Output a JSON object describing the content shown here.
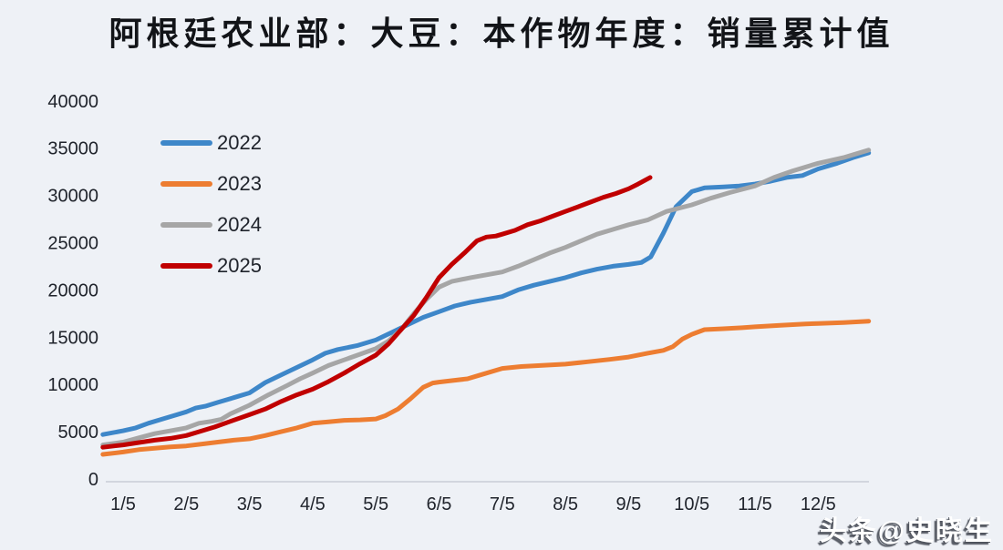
{
  "title": "阿根廷农业部：大豆：本作物年度：销量累计值",
  "watermark": "头条@史晓生",
  "colors": {
    "background": "#eef1f6",
    "title_text": "#121418",
    "tick_text": "#20242c",
    "axis_line": "#c9ced6",
    "series_2022": "#3e87c9",
    "series_2023": "#ed7d31",
    "series_2024": "#a6a6a6",
    "series_2025": "#c00000",
    "watermark_fill": "#ffffff",
    "watermark_shadow": "#494e58"
  },
  "legend": [
    {
      "label": "2022",
      "color": "#3e87c9"
    },
    {
      "label": "2023",
      "color": "#ed7d31"
    },
    {
      "label": "2024",
      "color": "#a6a6a6"
    },
    {
      "label": "2025",
      "color": "#c00000"
    }
  ],
  "chart_data": {
    "type": "line",
    "title": "阿根廷农业部：大豆：本作物年度：销量累计值",
    "xlabel": "",
    "ylabel": "",
    "grid": false,
    "legend_position": "top-left",
    "x_axis": {
      "tick_labels": [
        "1/5",
        "2/5",
        "3/5",
        "4/5",
        "5/5",
        "6/5",
        "7/5",
        "8/5",
        "9/5",
        "10/5",
        "11/5",
        "12/5"
      ],
      "range_month_units": [
        0.68,
        12.8
      ]
    },
    "y_axis": {
      "ticks": [
        0,
        5000,
        10000,
        15000,
        20000,
        25000,
        30000,
        35000,
        40000
      ],
      "range": [
        0,
        40000
      ]
    },
    "series": [
      {
        "name": "2022",
        "color": "#3e87c9",
        "points": [
          [
            0.68,
            4700
          ],
          [
            1,
            5100
          ],
          [
            1.2,
            5400
          ],
          [
            1.4,
            5900
          ],
          [
            1.6,
            6300
          ],
          [
            1.8,
            6700
          ],
          [
            2,
            7100
          ],
          [
            2.15,
            7500
          ],
          [
            2.3,
            7700
          ],
          [
            2.5,
            8100
          ],
          [
            2.75,
            8600
          ],
          [
            3,
            9100
          ],
          [
            3.25,
            10200
          ],
          [
            3.5,
            11000
          ],
          [
            3.75,
            11800
          ],
          [
            4,
            12600
          ],
          [
            4.2,
            13300
          ],
          [
            4.4,
            13700
          ],
          [
            4.7,
            14100
          ],
          [
            5,
            14700
          ],
          [
            5.25,
            15500
          ],
          [
            5.5,
            16300
          ],
          [
            5.75,
            17100
          ],
          [
            6,
            17700
          ],
          [
            6.25,
            18300
          ],
          [
            6.5,
            18700
          ],
          [
            6.75,
            19000
          ],
          [
            7,
            19300
          ],
          [
            7.25,
            20000
          ],
          [
            7.5,
            20500
          ],
          [
            7.75,
            20900
          ],
          [
            8,
            21300
          ],
          [
            8.25,
            21800
          ],
          [
            8.5,
            22200
          ],
          [
            8.75,
            22500
          ],
          [
            9,
            22700
          ],
          [
            9.2,
            22900
          ],
          [
            9.35,
            23500
          ],
          [
            9.55,
            26000
          ],
          [
            9.75,
            28800
          ],
          [
            10,
            30400
          ],
          [
            10.2,
            30800
          ],
          [
            10.5,
            30900
          ],
          [
            10.75,
            31000
          ],
          [
            11,
            31200
          ],
          [
            11.25,
            31500
          ],
          [
            11.5,
            31900
          ],
          [
            11.75,
            32100
          ],
          [
            12,
            32800
          ],
          [
            12.3,
            33400
          ],
          [
            12.55,
            34000
          ],
          [
            12.8,
            34500
          ]
        ]
      },
      {
        "name": "2023",
        "color": "#ed7d31",
        "points": [
          [
            0.68,
            2600
          ],
          [
            1,
            2850
          ],
          [
            1.25,
            3100
          ],
          [
            1.5,
            3250
          ],
          [
            1.75,
            3400
          ],
          [
            2,
            3500
          ],
          [
            2.25,
            3700
          ],
          [
            2.5,
            3900
          ],
          [
            2.75,
            4100
          ],
          [
            3,
            4250
          ],
          [
            3.25,
            4600
          ],
          [
            3.5,
            5000
          ],
          [
            3.75,
            5400
          ],
          [
            4,
            5900
          ],
          [
            4.25,
            6050
          ],
          [
            4.5,
            6200
          ],
          [
            4.75,
            6250
          ],
          [
            5,
            6350
          ],
          [
            5.15,
            6700
          ],
          [
            5.35,
            7400
          ],
          [
            5.55,
            8500
          ],
          [
            5.75,
            9700
          ],
          [
            5.9,
            10150
          ],
          [
            6,
            10250
          ],
          [
            6.2,
            10400
          ],
          [
            6.45,
            10600
          ],
          [
            6.7,
            11100
          ],
          [
            7,
            11700
          ],
          [
            7.3,
            11900
          ],
          [
            7.6,
            12000
          ],
          [
            8,
            12150
          ],
          [
            8.35,
            12400
          ],
          [
            8.7,
            12650
          ],
          [
            9,
            12900
          ],
          [
            9.3,
            13300
          ],
          [
            9.55,
            13600
          ],
          [
            9.7,
            14000
          ],
          [
            9.85,
            14800
          ],
          [
            10,
            15300
          ],
          [
            10.2,
            15800
          ],
          [
            10.5,
            15900
          ],
          [
            10.8,
            16000
          ],
          [
            11,
            16100
          ],
          [
            11.4,
            16250
          ],
          [
            11.8,
            16400
          ],
          [
            12,
            16450
          ],
          [
            12.4,
            16550
          ],
          [
            12.8,
            16700
          ]
        ]
      },
      {
        "name": "2024",
        "color": "#a6a6a6",
        "points": [
          [
            0.68,
            3600
          ],
          [
            1,
            3900
          ],
          [
            1.25,
            4350
          ],
          [
            1.5,
            4800
          ],
          [
            1.75,
            5100
          ],
          [
            2,
            5400
          ],
          [
            2.2,
            5900
          ],
          [
            2.4,
            6100
          ],
          [
            2.55,
            6300
          ],
          [
            2.7,
            6900
          ],
          [
            3,
            7800
          ],
          [
            3.3,
            8900
          ],
          [
            3.6,
            9900
          ],
          [
            3.8,
            10600
          ],
          [
            4,
            11200
          ],
          [
            4.25,
            12000
          ],
          [
            4.5,
            12600
          ],
          [
            4.75,
            13200
          ],
          [
            5,
            13800
          ],
          [
            5.2,
            14600
          ],
          [
            5.4,
            15800
          ],
          [
            5.6,
            17500
          ],
          [
            5.8,
            19000
          ],
          [
            6,
            20300
          ],
          [
            6.2,
            20900
          ],
          [
            6.5,
            21300
          ],
          [
            6.75,
            21600
          ],
          [
            7,
            21900
          ],
          [
            7.25,
            22500
          ],
          [
            7.5,
            23200
          ],
          [
            7.75,
            23900
          ],
          [
            8,
            24500
          ],
          [
            8.25,
            25200
          ],
          [
            8.5,
            25900
          ],
          [
            8.75,
            26400
          ],
          [
            9,
            26900
          ],
          [
            9.3,
            27400
          ],
          [
            9.6,
            28300
          ],
          [
            10,
            29000
          ],
          [
            10.3,
            29700
          ],
          [
            10.6,
            30300
          ],
          [
            11,
            31000
          ],
          [
            11.3,
            31900
          ],
          [
            11.6,
            32600
          ],
          [
            12,
            33400
          ],
          [
            12.4,
            34000
          ],
          [
            12.8,
            34800
          ]
        ]
      },
      {
        "name": "2025",
        "color": "#c00000",
        "points": [
          [
            0.68,
            3350
          ],
          [
            1,
            3600
          ],
          [
            1.25,
            3850
          ],
          [
            1.5,
            4100
          ],
          [
            1.75,
            4300
          ],
          [
            2,
            4600
          ],
          [
            2.2,
            5000
          ],
          [
            2.45,
            5500
          ],
          [
            2.7,
            6100
          ],
          [
            3,
            6800
          ],
          [
            3.25,
            7400
          ],
          [
            3.5,
            8200
          ],
          [
            3.75,
            8900
          ],
          [
            4,
            9500
          ],
          [
            4.25,
            10300
          ],
          [
            4.5,
            11200
          ],
          [
            4.75,
            12200
          ],
          [
            5,
            13100
          ],
          [
            5.2,
            14300
          ],
          [
            5.4,
            15800
          ],
          [
            5.6,
            17300
          ],
          [
            5.8,
            19200
          ],
          [
            6,
            21300
          ],
          [
            6.2,
            22700
          ],
          [
            6.4,
            23900
          ],
          [
            6.6,
            25200
          ],
          [
            6.75,
            25600
          ],
          [
            6.9,
            25700
          ],
          [
            7,
            25900
          ],
          [
            7.2,
            26300
          ],
          [
            7.4,
            26900
          ],
          [
            7.6,
            27300
          ],
          [
            7.8,
            27800
          ],
          [
            8,
            28300
          ],
          [
            8.2,
            28800
          ],
          [
            8.4,
            29300
          ],
          [
            8.6,
            29800
          ],
          [
            8.8,
            30200
          ],
          [
            9,
            30700
          ],
          [
            9.15,
            31200
          ],
          [
            9.34,
            31900
          ]
        ]
      }
    ]
  }
}
